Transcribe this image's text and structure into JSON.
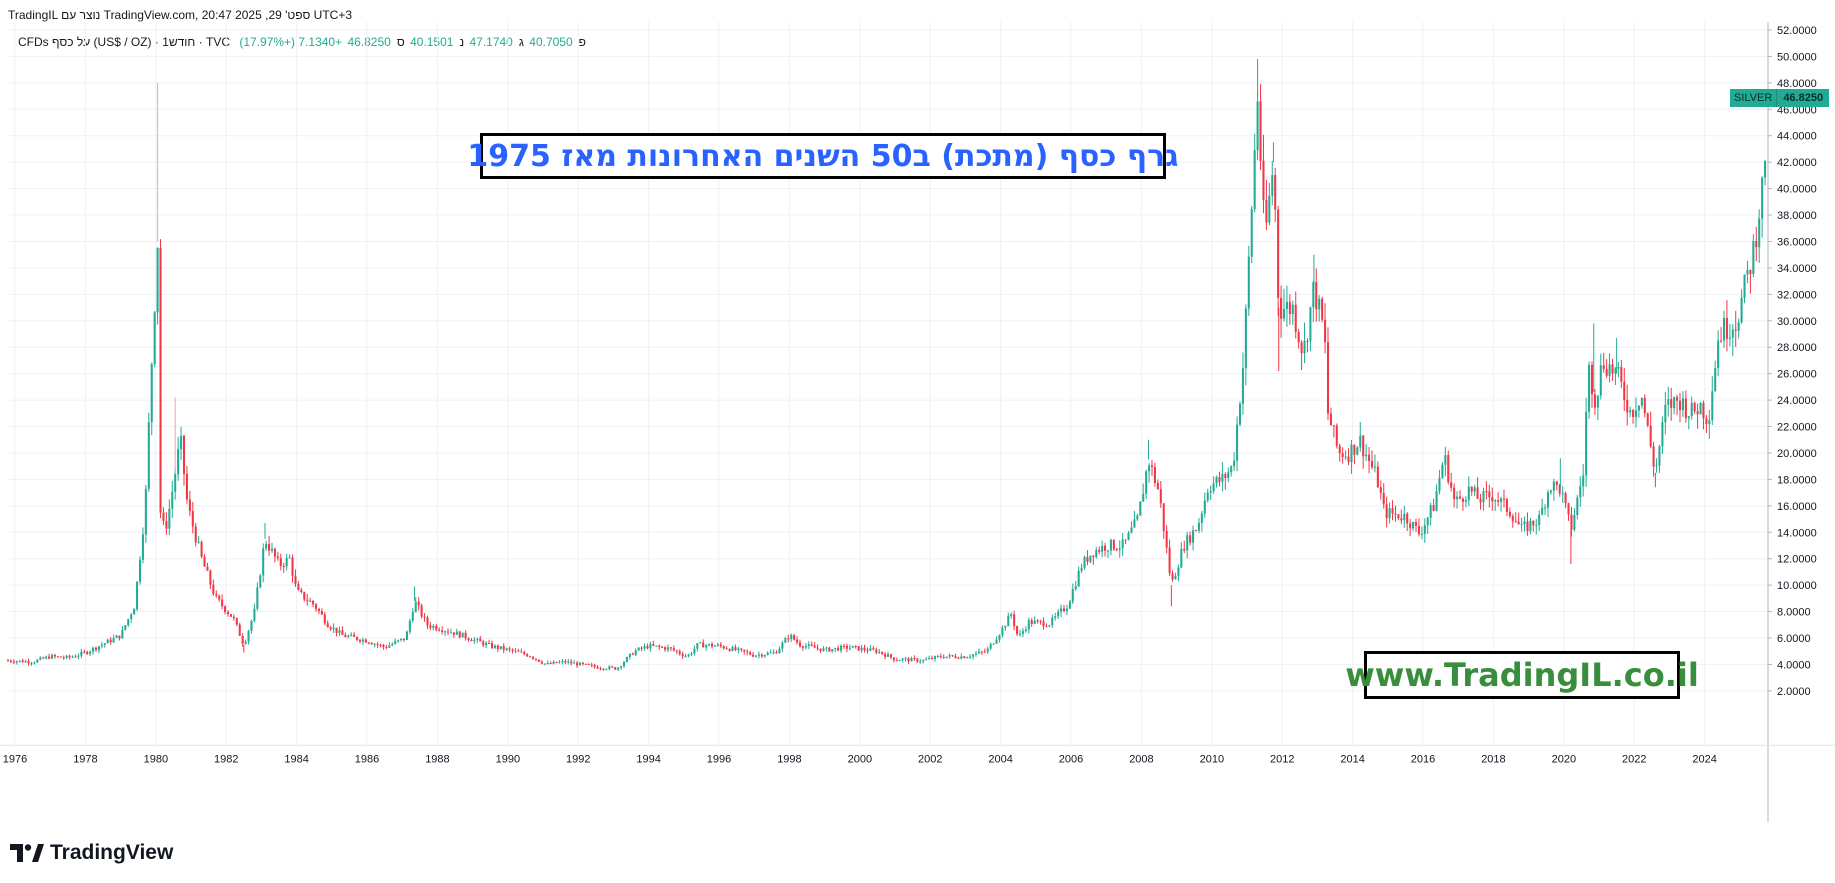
{
  "header": {
    "created_line": "TradingIL נוצר עם TradingView.com, 20:47 2025 ,29 'ספט UTC+3",
    "symbol_line": "CFDs על כסף (US$ / OZ) · 1חודש · TVC",
    "ohlc": {
      "o_label": "פ",
      "o": "40.7050",
      "h_label": "ג",
      "h": "47.1740",
      "l_label": "נ",
      "l": "40.1501",
      "c_label": "ס",
      "c": "46.8250",
      "change": "+7.1340 (+17.97%)"
    }
  },
  "title_overlay": "גרף כסף (מתכת) ב50 השנים האחרונות מאז 1975",
  "website_overlay": "www.TradingIL.co.il",
  "brand": "TradingView",
  "last_price": {
    "symbol": "SILVER",
    "value": "46.8250"
  },
  "colors": {
    "up": "#22ab94",
    "down": "#f23645",
    "grid": "#eef1f5",
    "title": "#2962ff",
    "site": "#388e3c"
  },
  "chart_data": {
    "type": "candlestick",
    "interval": "1 month",
    "y_axis": {
      "side": "right",
      "min": 0,
      "max": 52,
      "ticks": [
        "2.0000",
        "4.0000",
        "6.0000",
        "8.0000",
        "10.0000",
        "12.0000",
        "14.0000",
        "16.0000",
        "18.0000",
        "20.0000",
        "22.0000",
        "24.0000",
        "26.0000",
        "28.0000",
        "30.0000",
        "32.0000",
        "34.0000",
        "36.0000",
        "38.0000",
        "40.0000",
        "42.0000",
        "44.0000",
        "46.0000",
        "48.0000",
        "50.0000",
        "52.0000"
      ]
    },
    "x_axis": {
      "min": 1975.8,
      "max": 2025.8,
      "ticks": [
        "1976",
        "1978",
        "1980",
        "1982",
        "1984",
        "1986",
        "1988",
        "1990",
        "1992",
        "1994",
        "1996",
        "1998",
        "2000",
        "2002",
        "2004",
        "2006",
        "2008",
        "2010",
        "2012",
        "2014",
        "2016",
        "2018",
        "2020",
        "2022",
        "2024"
      ]
    },
    "grid": true,
    "path": [
      [
        1975.8,
        4.3
      ],
      [
        1976.5,
        4.2
      ],
      [
        1977,
        4.6
      ],
      [
        1977.5,
        4.5
      ],
      [
        1978,
        4.9
      ],
      [
        1978.7,
        5.8
      ],
      [
        1979,
        6.2
      ],
      [
        1979.4,
        8.5
      ],
      [
        1979.7,
        16
      ],
      [
        1979.9,
        28
      ],
      [
        1980.05,
        36
      ],
      [
        1980.1,
        16
      ],
      [
        1980.25,
        14
      ],
      [
        1980.4,
        16
      ],
      [
        1980.7,
        21
      ],
      [
        1980.9,
        16
      ],
      [
        1981.3,
        12
      ],
      [
        1981.7,
        9
      ],
      [
        1982.2,
        7.5
      ],
      [
        1982.5,
        5.5
      ],
      [
        1982.8,
        8
      ],
      [
        1983.1,
        13.5
      ],
      [
        1983.5,
        11.5
      ],
      [
        1983.8,
        12
      ],
      [
        1984,
        9.5
      ],
      [
        1984.5,
        8.5
      ],
      [
        1984.9,
        7
      ],
      [
        1985.3,
        6.2
      ],
      [
        1986,
        5.8
      ],
      [
        1986.5,
        5.3
      ],
      [
        1987.1,
        6
      ],
      [
        1987.35,
        8.8
      ],
      [
        1987.7,
        7
      ],
      [
        1988,
        6.8
      ],
      [
        1988.7,
        6.2
      ],
      [
        1989.5,
        5.4
      ],
      [
        1990,
        5.1
      ],
      [
        1990.6,
        4.7
      ],
      [
        1991.1,
        4
      ],
      [
        1991.6,
        4.2
      ],
      [
        1992.5,
        3.8
      ],
      [
        1993.1,
        3.7
      ],
      [
        1993.6,
        5
      ],
      [
        1994,
        5.4
      ],
      [
        1994.6,
        5.2
      ],
      [
        1995.1,
        4.6
      ],
      [
        1995.4,
        5.5
      ],
      [
        1996,
        5.4
      ],
      [
        1996.6,
        5
      ],
      [
        1997,
        4.7
      ],
      [
        1997.6,
        4.9
      ],
      [
        1998,
        6.2
      ],
      [
        1998.3,
        5.5
      ],
      [
        1999,
        5.1
      ],
      [
        1999.7,
        5.3
      ],
      [
        2000.5,
        5
      ],
      [
        2001,
        4.4
      ],
      [
        2001.8,
        4.3
      ],
      [
        2002.3,
        4.6
      ],
      [
        2003,
        4.6
      ],
      [
        2003.6,
        5
      ],
      [
        2004,
        6.5
      ],
      [
        2004.3,
        7.8
      ],
      [
        2004.5,
        6
      ],
      [
        2004.8,
        7.2
      ],
      [
        2005.4,
        7.1
      ],
      [
        2005.9,
        8.5
      ],
      [
        2006.3,
        11.5
      ],
      [
        2006.6,
        12.5
      ],
      [
        2007,
        13
      ],
      [
        2007.5,
        13
      ],
      [
        2007.9,
        15
      ],
      [
        2008.2,
        19.5
      ],
      [
        2008.5,
        17
      ],
      [
        2008.85,
        10
      ],
      [
        2009.2,
        13
      ],
      [
        2009.6,
        14.5
      ],
      [
        2009.9,
        17.5
      ],
      [
        2010.3,
        18
      ],
      [
        2010.6,
        19
      ],
      [
        2010.9,
        27
      ],
      [
        2011.3,
        47
      ],
      [
        2011.5,
        36
      ],
      [
        2011.75,
        42
      ],
      [
        2011.9,
        31
      ],
      [
        2012.3,
        31
      ],
      [
        2012.6,
        27.5
      ],
      [
        2012.9,
        32.5
      ],
      [
        2013.2,
        29
      ],
      [
        2013.3,
        23
      ],
      [
        2013.6,
        20
      ],
      [
        2013.9,
        20
      ],
      [
        2014.2,
        21
      ],
      [
        2014.7,
        18
      ],
      [
        2014.9,
        15.5
      ],
      [
        2015.5,
        15.2
      ],
      [
        2015.9,
        13.9
      ],
      [
        2016.3,
        16
      ],
      [
        2016.6,
        19.8
      ],
      [
        2016.9,
        16.2
      ],
      [
        2017.3,
        17.2
      ],
      [
        2017.6,
        16.5
      ],
      [
        2018,
        16.8
      ],
      [
        2018.5,
        15.5
      ],
      [
        2018.8,
        14.2
      ],
      [
        2019.3,
        15
      ],
      [
        2019.6,
        17.6
      ],
      [
        2019.9,
        17.3
      ],
      [
        2020.2,
        14.2
      ],
      [
        2020.55,
        18.5
      ],
      [
        2020.7,
        26.5
      ],
      [
        2020.9,
        24
      ],
      [
        2021.1,
        27
      ],
      [
        2021.5,
        26
      ],
      [
        2021.9,
        23
      ],
      [
        2022.2,
        24.5
      ],
      [
        2022.6,
        18.5
      ],
      [
        2022.9,
        23.5
      ],
      [
        2023.3,
        24
      ],
      [
        2023.6,
        23
      ],
      [
        2023.9,
        23.6
      ],
      [
        2024.1,
        22.5
      ],
      [
        2024.4,
        29
      ],
      [
        2024.6,
        29.5
      ],
      [
        2024.9,
        30
      ],
      [
        2025.1,
        32
      ],
      [
        2025.4,
        35.5
      ],
      [
        2025.6,
        39.5
      ],
      [
        2025.7,
        40.7
      ],
      [
        2025.75,
        46.8
      ]
    ],
    "spikes": [
      [
        1980.05,
        48
      ],
      [
        1980.55,
        24.2
      ],
      [
        1983.1,
        14.7
      ],
      [
        1987.35,
        9.9
      ],
      [
        2008.2,
        21
      ],
      [
        2011.3,
        49.8
      ],
      [
        2011.75,
        43.5
      ],
      [
        2012.9,
        35
      ],
      [
        2019.9,
        19.6
      ],
      [
        2020.85,
        29.8
      ],
      [
        2021.5,
        28.7
      ],
      [
        2025.75,
        47.2
      ]
    ],
    "dips": [
      [
        1982.5,
        4.9
      ],
      [
        2008.85,
        8.4
      ],
      [
        2020.2,
        11.6
      ],
      [
        2011.9,
        26.2
      ],
      [
        2022.6,
        17.4
      ]
    ]
  }
}
